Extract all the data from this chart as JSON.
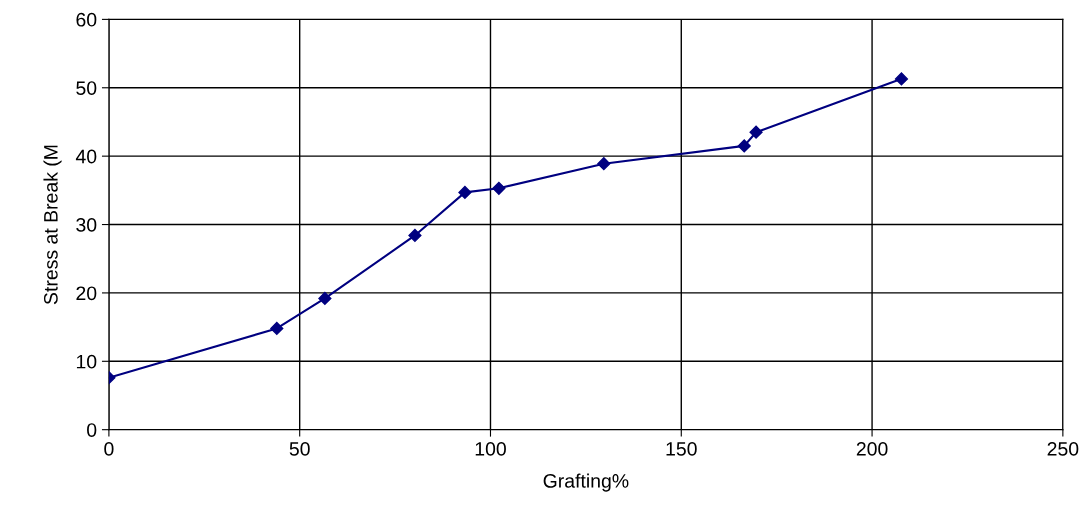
{
  "chart_data": {
    "type": "line",
    "xlabel": "Grafting%",
    "ylabel": "Stress at Break (M",
    "series": [
      {
        "color": "#000080",
        "x": [
          0,
          44,
          56.6,
          80.2,
          93.3,
          102.2,
          129.7,
          166.5,
          169.6,
          207.7
        ],
        "values": [
          7.6,
          14.8,
          19.2,
          28.4,
          34.7,
          35.3,
          38.9,
          41.5,
          43.5,
          51.3
        ]
      }
    ],
    "xlim": [
      0,
      250
    ],
    "xticks": [
      0,
      50,
      100,
      150,
      200,
      250
    ],
    "ylim": [
      0,
      60
    ],
    "yticks": [
      0,
      10,
      20,
      30,
      40,
      50,
      60
    ],
    "grid": true,
    "marker": "diamond",
    "line_style": "solid"
  }
}
